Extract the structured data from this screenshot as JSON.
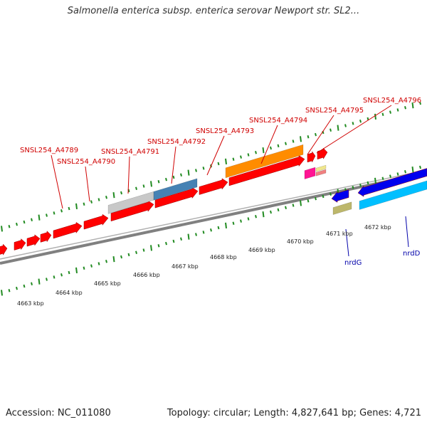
{
  "title": "Salmonella enterica subsp. enterica serovar Newport str. SL2...",
  "footer": {
    "accession": "Accession: NC_011080",
    "summary": "Topology: circular; Length: 4,827,641 bp; Genes: 4,721"
  },
  "top_labels": [
    "SNSL254_A4789",
    "SNSL254_A4790",
    "SNSL254_A4791",
    "SNSL254_A4792",
    "SNSL254_A4793",
    "SNSL254_A4794",
    "SNSL254_A4795",
    "SNSL254_A4796"
  ],
  "bottom_labels": [
    "nrdG",
    "nrdD"
  ],
  "kbp_ticks": [
    "4663 kbp",
    "4664 kbp",
    "4665 kbp",
    "4666 kbp",
    "4667 kbp",
    "4668 kbp",
    "4669 kbp",
    "4670 kbp",
    "4671 kbp",
    "4672 kbp"
  ],
  "colors": {
    "forward_cds": "#ff0000",
    "reverse_cds": "#0000ee",
    "backbone": "#808080",
    "tick": "#228b22",
    "label_red": "#d00000",
    "label_blue": "#0000aa",
    "cog_gray": "#c8c8c8",
    "cog_steelblue": "#4682b4",
    "cog_orange": "#ff8c00",
    "cog_magenta": "#ff1493",
    "cog_salmon": "#f08080",
    "cog_khaki": "#f0e68c",
    "cog_olive": "#bdb76b",
    "cog_cyan": "#00bfff"
  }
}
